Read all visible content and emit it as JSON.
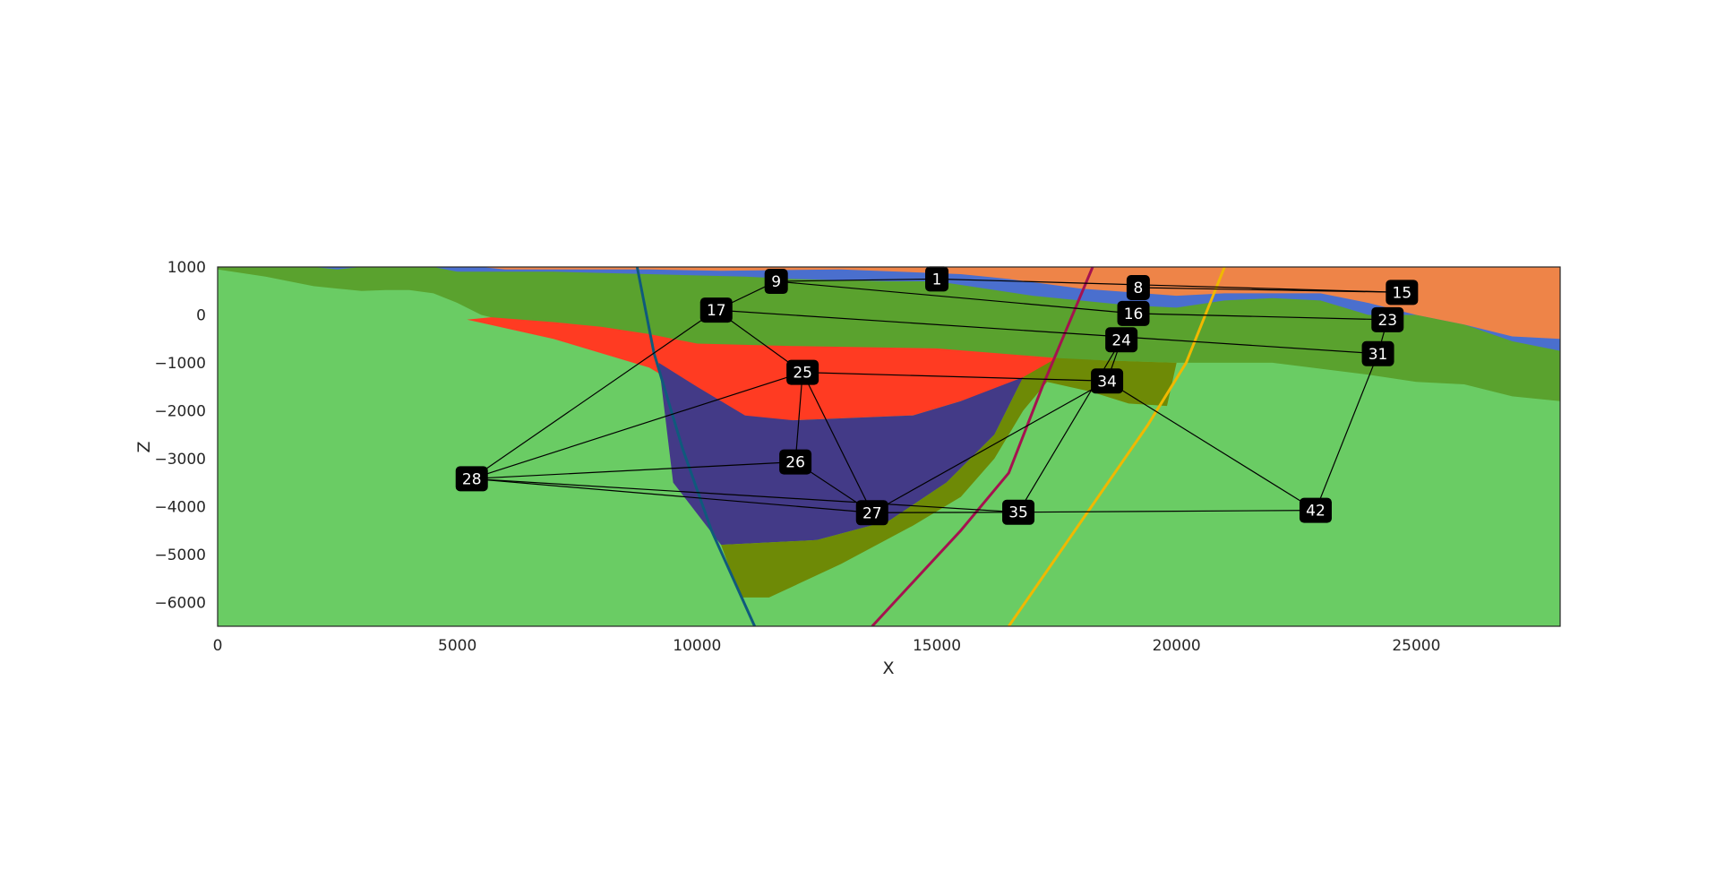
{
  "chart_data": {
    "type": "section",
    "xlabel": "X",
    "ylabel": "Z",
    "xlim": [
      0,
      28000
    ],
    "ylim": [
      -6500,
      1000
    ],
    "x_ticks": [
      0,
      5000,
      10000,
      15000,
      20000,
      25000
    ],
    "y_ticks": [
      1000,
      0,
      -1000,
      -2000,
      -3000,
      -4000,
      -5000,
      -6000
    ],
    "x_tick_labels": [
      "0",
      "5000",
      "10000",
      "15000",
      "20000",
      "25000"
    ],
    "y_tick_labels": [
      "1000",
      "0",
      "−1000",
      "−2000",
      "−3000",
      "−4000",
      "−5000",
      "−6000"
    ],
    "grid": false,
    "layers": [
      {
        "color": "#6acc64",
        "top": [
          [
            0,
            1000
          ],
          [
            28000,
            1000
          ]
        ],
        "bottom": [
          [
            0,
            -6500
          ],
          [
            28000,
            -6500
          ]
        ]
      },
      {
        "color": "#5aa22e",
        "top": [
          [
            0,
            1000
          ],
          [
            28000,
            1000
          ]
        ],
        "bottom": [
          [
            0,
            950
          ],
          [
            1000,
            800
          ],
          [
            2000,
            600
          ],
          [
            2500,
            550
          ],
          [
            3000,
            500
          ],
          [
            3500,
            520
          ],
          [
            4000,
            520
          ],
          [
            4500,
            450
          ],
          [
            5000,
            250
          ],
          [
            5500,
            0
          ],
          [
            6500,
            -250
          ],
          [
            8000,
            -350
          ],
          [
            9000,
            -600
          ],
          [
            10000,
            -700
          ],
          [
            12000,
            -750
          ],
          [
            15000,
            -800
          ],
          [
            17000,
            -900
          ],
          [
            18500,
            -950
          ],
          [
            20000,
            -1000
          ],
          [
            22000,
            -1000
          ],
          [
            24000,
            -1250
          ],
          [
            25000,
            -1400
          ],
          [
            26000,
            -1450
          ],
          [
            27000,
            -1700
          ],
          [
            28000,
            -1800
          ]
        ]
      },
      {
        "color": "#4a6fce",
        "top": [
          [
            0,
            1000
          ],
          [
            28000,
            1000
          ]
        ],
        "bottom": [
          [
            0,
            1000
          ],
          [
            2000,
            1000
          ],
          [
            2500,
            950
          ],
          [
            3000,
            1000
          ],
          [
            4500,
            1000
          ],
          [
            5000,
            900
          ],
          [
            7000,
            900
          ],
          [
            9000,
            850
          ],
          [
            11000,
            800
          ],
          [
            12000,
            750
          ],
          [
            14000,
            700
          ],
          [
            15000,
            700
          ],
          [
            17000,
            400
          ],
          [
            19000,
            200
          ],
          [
            20000,
            150
          ],
          [
            21000,
            300
          ],
          [
            22000,
            350
          ],
          [
            23000,
            300
          ],
          [
            24000,
            0
          ],
          [
            25000,
            0
          ],
          [
            26000,
            -200
          ],
          [
            27000,
            -550
          ],
          [
            28000,
            -750
          ]
        ]
      },
      {
        "color": "#ee8448",
        "top": [
          [
            0,
            1000
          ],
          [
            28000,
            1000
          ]
        ],
        "bottom": [
          [
            0,
            1000
          ],
          [
            5500,
            1000
          ],
          [
            6000,
            950
          ],
          [
            7000,
            950
          ],
          [
            9000,
            950
          ],
          [
            10500,
            920
          ],
          [
            13000,
            950
          ],
          [
            15500,
            850
          ],
          [
            16500,
            750
          ],
          [
            18000,
            550
          ],
          [
            20000,
            400
          ],
          [
            21000,
            450
          ],
          [
            22000,
            450
          ],
          [
            23000,
            450
          ],
          [
            24000,
            250
          ],
          [
            25000,
            0
          ],
          [
            26000,
            -200
          ],
          [
            27000,
            -450
          ],
          [
            28000,
            -500
          ]
        ]
      },
      {
        "color": "#ff3b22",
        "top": [
          [
            5200,
            -100
          ],
          [
            5700,
            -50
          ],
          [
            7000,
            -150
          ],
          [
            8000,
            -250
          ],
          [
            9000,
            -400
          ],
          [
            10000,
            -600
          ],
          [
            12000,
            -650
          ],
          [
            15000,
            -700
          ],
          [
            17500,
            -900
          ],
          [
            17500,
            -1200
          ],
          [
            15500,
            -1800
          ],
          [
            14500,
            -2100
          ],
          [
            12000,
            -2200
          ],
          [
            11000,
            -2150
          ],
          [
            10000,
            -1700
          ],
          [
            9000,
            -1100
          ],
          [
            7000,
            -500
          ],
          [
            5200,
            -100
          ]
        ],
        "bottom": []
      },
      {
        "color": "#433a87",
        "top": [
          [
            9200,
            -1000
          ],
          [
            10000,
            -1500
          ],
          [
            11000,
            -2100
          ],
          [
            12000,
            -2200
          ],
          [
            14500,
            -2100
          ],
          [
            15500,
            -1800
          ],
          [
            16800,
            -1300
          ],
          [
            16200,
            -2500
          ],
          [
            15200,
            -3500
          ],
          [
            14000,
            -4300
          ],
          [
            12500,
            -4700
          ],
          [
            10500,
            -4800
          ],
          [
            9500,
            -3500
          ],
          [
            9200,
            -1000
          ]
        ],
        "bottom": []
      },
      {
        "color": "#6e8a06",
        "top": [
          [
            16800,
            -1300
          ],
          [
            17500,
            -900
          ],
          [
            18500,
            -950
          ],
          [
            20000,
            -1000
          ],
          [
            19800,
            -1900
          ],
          [
            19000,
            -1850
          ],
          [
            18200,
            -1600
          ],
          [
            17300,
            -1400
          ],
          [
            16800,
            -2000
          ],
          [
            16200,
            -3000
          ],
          [
            15500,
            -3800
          ],
          [
            14500,
            -4400
          ],
          [
            13000,
            -5200
          ],
          [
            11500,
            -5900
          ],
          [
            10900,
            -5900
          ],
          [
            10500,
            -4800
          ],
          [
            12500,
            -4700
          ],
          [
            14000,
            -4300
          ],
          [
            15200,
            -3500
          ],
          [
            16200,
            -2500
          ],
          [
            16800,
            -1300
          ]
        ],
        "bottom": []
      }
    ],
    "faults": [
      {
        "color": "#0f5a7c",
        "points": [
          [
            8750,
            1000
          ],
          [
            9100,
            -800
          ],
          [
            9700,
            -2800
          ],
          [
            10300,
            -4500
          ],
          [
            11200,
            -6500
          ]
        ]
      },
      {
        "color": "#a5124f",
        "points": [
          [
            18250,
            1000
          ],
          [
            17200,
            -1500
          ],
          [
            16500,
            -3300
          ],
          [
            15500,
            -4500
          ],
          [
            13650,
            -6500
          ]
        ]
      },
      {
        "color": "#f0b800",
        "points": [
          [
            21000,
            1000
          ],
          [
            20200,
            -1000
          ],
          [
            19400,
            -2300
          ],
          [
            16500,
            -6500
          ]
        ]
      }
    ],
    "nodes": [
      {
        "id": "1",
        "x": 15000,
        "y": 750
      },
      {
        "id": "8",
        "x": 19200,
        "y": 570
      },
      {
        "id": "9",
        "x": 11650,
        "y": 700
      },
      {
        "id": "15",
        "x": 24700,
        "y": 470
      },
      {
        "id": "16",
        "x": 19100,
        "y": 30
      },
      {
        "id": "17",
        "x": 10400,
        "y": 100
      },
      {
        "id": "23",
        "x": 24400,
        "y": -100
      },
      {
        "id": "24",
        "x": 18850,
        "y": -520
      },
      {
        "id": "25",
        "x": 12200,
        "y": -1200
      },
      {
        "id": "26",
        "x": 12050,
        "y": -3070
      },
      {
        "id": "27",
        "x": 13650,
        "y": -4130
      },
      {
        "id": "28",
        "x": 5300,
        "y": -3420
      },
      {
        "id": "31",
        "x": 24200,
        "y": -810
      },
      {
        "id": "34",
        "x": 18550,
        "y": -1380
      },
      {
        "id": "35",
        "x": 16700,
        "y": -4120
      },
      {
        "id": "42",
        "x": 22900,
        "y": -4080
      }
    ],
    "edges": [
      [
        "1",
        "15"
      ],
      [
        "9",
        "16"
      ],
      [
        "9",
        "17"
      ],
      [
        "9",
        "1"
      ],
      [
        "16",
        "23"
      ],
      [
        "23",
        "31"
      ],
      [
        "8",
        "15"
      ],
      [
        "17",
        "25"
      ],
      [
        "17",
        "28"
      ],
      [
        "17",
        "31"
      ],
      [
        "24",
        "35"
      ],
      [
        "24",
        "34"
      ],
      [
        "25",
        "28"
      ],
      [
        "25",
        "26"
      ],
      [
        "25",
        "27"
      ],
      [
        "25",
        "34"
      ],
      [
        "26",
        "27"
      ],
      [
        "26",
        "28"
      ],
      [
        "27",
        "28"
      ],
      [
        "27",
        "34"
      ],
      [
        "27",
        "35"
      ],
      [
        "28",
        "35"
      ],
      [
        "34",
        "42"
      ],
      [
        "31",
        "42"
      ],
      [
        "35",
        "42"
      ]
    ]
  }
}
